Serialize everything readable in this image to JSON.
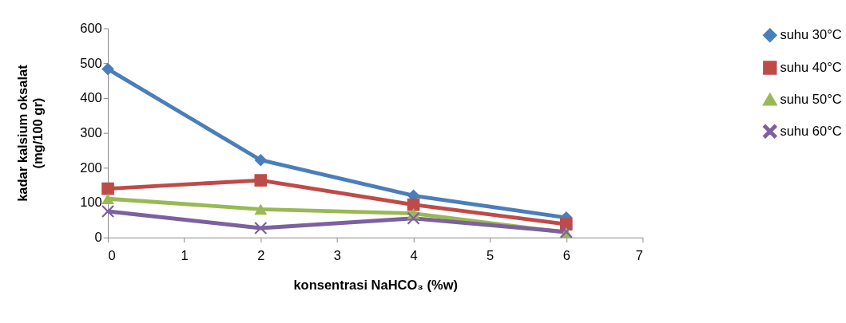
{
  "chart_data": {
    "type": "line",
    "xlabel": "konsentrasi NaHCO₃ (%w)",
    "ylabel": "kadar kalsium oksalat\n(mg/100 gr)",
    "x": [
      0,
      2,
      4,
      6
    ],
    "series": [
      {
        "name": "suhu 30°C",
        "color": "#4a7ebb",
        "marker": "diamond",
        "values": [
          483,
          222,
          120,
          57
        ]
      },
      {
        "name": "suhu 40°C",
        "color": "#be4b48",
        "marker": "square",
        "values": [
          140,
          164,
          94,
          38
        ]
      },
      {
        "name": "suhu 50°C",
        "color": "#98b954",
        "marker": "triangle",
        "values": [
          111,
          81,
          69,
          14
        ]
      },
      {
        "name": "suhu 60°C",
        "color": "#7d60a0",
        "marker": "cross",
        "values": [
          75,
          27,
          55,
          16
        ]
      }
    ],
    "xlim": [
      0,
      7
    ],
    "xticks": [
      0,
      1,
      2,
      3,
      4,
      5,
      6,
      7
    ],
    "ylim": [
      0,
      600
    ],
    "yticks": [
      0,
      100,
      200,
      300,
      400,
      500,
      600
    ],
    "grid": false,
    "legend": "right",
    "line_style": "solid"
  }
}
